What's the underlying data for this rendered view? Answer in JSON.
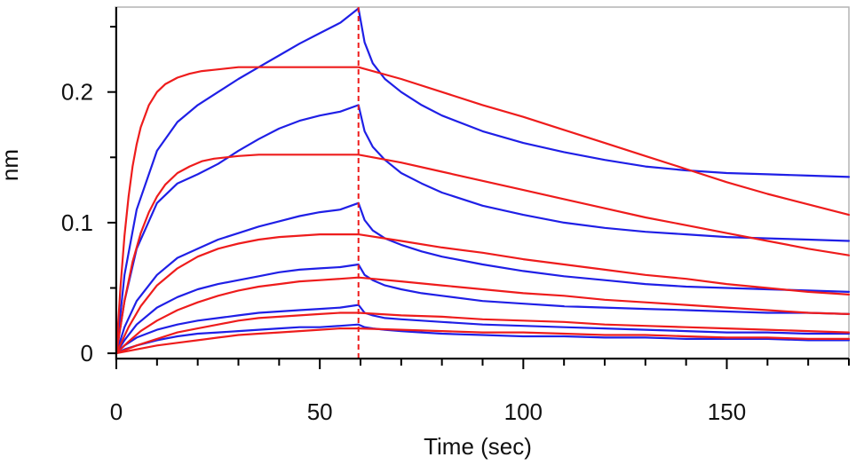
{
  "chart_data": {
    "type": "line",
    "title": "",
    "xlabel": "Time (sec)",
    "ylabel": "nm",
    "xlim": [
      0,
      180
    ],
    "ylim": [
      -0.004,
      0.265
    ],
    "x_ticks": [
      0,
      50,
      100,
      150
    ],
    "x_tick_labels": [
      "0",
      "50",
      "100",
      "150"
    ],
    "x_minor_step": 10,
    "y_ticks": [
      0,
      0.1,
      0.2
    ],
    "y_tick_labels": [
      "0",
      "0.1",
      "0.2"
    ],
    "y_minor_step": 0.05,
    "grid": false,
    "legend": "none",
    "marker_x": 59.5,
    "colors": {
      "measured": "#1f1fe6",
      "fit": "#ee1c1c",
      "marker": "#ee1c1c",
      "frame": "#b4b4b4",
      "axis": "#000000"
    },
    "series": [
      {
        "kind": "measured",
        "x": [
          0,
          2,
          5,
          10,
          15,
          20,
          25,
          30,
          35,
          40,
          45,
          50,
          55,
          59.5,
          61,
          63,
          66,
          70,
          75,
          80,
          90,
          100,
          110,
          120,
          130,
          140,
          150,
          160,
          170,
          180
        ],
        "y": [
          0,
          0.06,
          0.11,
          0.155,
          0.177,
          0.19,
          0.2,
          0.21,
          0.219,
          0.228,
          0.237,
          0.245,
          0.253,
          0.264,
          0.238,
          0.222,
          0.21,
          0.2,
          0.19,
          0.182,
          0.17,
          0.161,
          0.154,
          0.148,
          0.143,
          0.14,
          0.138,
          0.137,
          0.136,
          0.135
        ]
      },
      {
        "kind": "measured",
        "x": [
          0,
          2,
          5,
          10,
          15,
          20,
          25,
          30,
          35,
          40,
          45,
          50,
          55,
          59.5,
          61,
          63,
          66,
          70,
          75,
          80,
          90,
          100,
          110,
          120,
          130,
          140,
          150,
          160,
          170,
          180
        ],
        "y": [
          0,
          0.04,
          0.08,
          0.115,
          0.13,
          0.137,
          0.145,
          0.155,
          0.164,
          0.172,
          0.178,
          0.182,
          0.185,
          0.19,
          0.17,
          0.158,
          0.148,
          0.138,
          0.13,
          0.123,
          0.113,
          0.106,
          0.1,
          0.096,
          0.093,
          0.091,
          0.089,
          0.088,
          0.087,
          0.086
        ]
      },
      {
        "kind": "measured",
        "x": [
          0,
          2,
          5,
          10,
          15,
          20,
          25,
          30,
          35,
          40,
          45,
          50,
          55,
          59.5,
          61,
          63,
          66,
          70,
          75,
          80,
          90,
          100,
          110,
          120,
          130,
          140,
          150,
          160,
          170,
          180
        ],
        "y": [
          0,
          0.02,
          0.04,
          0.06,
          0.073,
          0.08,
          0.087,
          0.092,
          0.097,
          0.101,
          0.105,
          0.108,
          0.11,
          0.115,
          0.102,
          0.094,
          0.088,
          0.083,
          0.078,
          0.074,
          0.068,
          0.063,
          0.059,
          0.056,
          0.053,
          0.051,
          0.05,
          0.049,
          0.048,
          0.047
        ]
      },
      {
        "kind": "measured",
        "x": [
          0,
          2,
          5,
          10,
          15,
          20,
          25,
          30,
          35,
          40,
          45,
          50,
          55,
          59.5,
          61,
          63,
          66,
          70,
          75,
          80,
          90,
          100,
          110,
          120,
          130,
          140,
          150,
          160,
          170,
          180
        ],
        "y": [
          0,
          0.01,
          0.022,
          0.035,
          0.043,
          0.049,
          0.053,
          0.056,
          0.059,
          0.062,
          0.064,
          0.065,
          0.066,
          0.068,
          0.06,
          0.056,
          0.052,
          0.049,
          0.046,
          0.044,
          0.04,
          0.038,
          0.036,
          0.035,
          0.034,
          0.033,
          0.032,
          0.031,
          0.031,
          0.03
        ]
      },
      {
        "kind": "measured",
        "x": [
          0,
          2,
          5,
          10,
          15,
          20,
          25,
          30,
          35,
          40,
          45,
          50,
          55,
          59.5,
          61,
          63,
          66,
          70,
          75,
          80,
          90,
          100,
          110,
          120,
          130,
          140,
          150,
          160,
          170,
          180
        ],
        "y": [
          0,
          0.006,
          0.012,
          0.018,
          0.022,
          0.025,
          0.027,
          0.029,
          0.031,
          0.032,
          0.033,
          0.034,
          0.035,
          0.037,
          0.031,
          0.029,
          0.027,
          0.026,
          0.025,
          0.024,
          0.022,
          0.021,
          0.02,
          0.019,
          0.018,
          0.017,
          0.016,
          0.016,
          0.015,
          0.015
        ]
      },
      {
        "kind": "measured",
        "x": [
          0,
          2,
          5,
          10,
          15,
          20,
          25,
          30,
          35,
          40,
          45,
          50,
          55,
          59.5,
          61,
          63,
          66,
          70,
          75,
          80,
          90,
          100,
          110,
          120,
          130,
          140,
          150,
          160,
          170,
          180
        ],
        "y": [
          0,
          0.003,
          0.006,
          0.01,
          0.013,
          0.015,
          0.016,
          0.017,
          0.018,
          0.019,
          0.02,
          0.02,
          0.021,
          0.022,
          0.02,
          0.019,
          0.018,
          0.017,
          0.016,
          0.015,
          0.014,
          0.013,
          0.013,
          0.012,
          0.012,
          0.011,
          0.011,
          0.011,
          0.01,
          0.01
        ]
      },
      {
        "kind": "fit",
        "x": [
          0,
          1,
          2,
          3,
          4,
          5,
          6,
          8,
          10,
          12,
          15,
          18,
          21,
          24,
          27,
          30,
          35,
          40,
          45,
          50,
          55,
          59.5,
          70,
          80,
          90,
          100,
          110,
          120,
          130,
          140,
          150,
          160,
          170,
          180
        ],
        "y": [
          0,
          0.05,
          0.09,
          0.12,
          0.143,
          0.16,
          0.173,
          0.19,
          0.2,
          0.206,
          0.211,
          0.214,
          0.216,
          0.217,
          0.218,
          0.219,
          0.219,
          0.219,
          0.219,
          0.219,
          0.219,
          0.219,
          0.21,
          0.2,
          0.19,
          0.181,
          0.171,
          0.161,
          0.151,
          0.141,
          0.131,
          0.122,
          0.114,
          0.106
        ]
      },
      {
        "kind": "fit",
        "x": [
          0,
          2,
          4,
          6,
          8,
          10,
          12,
          15,
          18,
          21,
          24,
          27,
          30,
          35,
          40,
          45,
          50,
          55,
          59.5,
          70,
          80,
          90,
          100,
          110,
          120,
          130,
          140,
          150,
          160,
          170,
          180
        ],
        "y": [
          0,
          0.04,
          0.07,
          0.092,
          0.108,
          0.12,
          0.129,
          0.138,
          0.143,
          0.147,
          0.149,
          0.15,
          0.151,
          0.152,
          0.152,
          0.152,
          0.152,
          0.152,
          0.152,
          0.146,
          0.139,
          0.132,
          0.125,
          0.118,
          0.111,
          0.104,
          0.098,
          0.092,
          0.086,
          0.08,
          0.075
        ]
      },
      {
        "kind": "fit",
        "x": [
          0,
          3,
          6,
          10,
          15,
          20,
          25,
          30,
          35,
          40,
          45,
          50,
          55,
          59.5,
          70,
          80,
          90,
          100,
          110,
          120,
          130,
          140,
          150,
          160,
          170,
          180
        ],
        "y": [
          0,
          0.02,
          0.036,
          0.052,
          0.065,
          0.074,
          0.08,
          0.084,
          0.087,
          0.089,
          0.09,
          0.091,
          0.091,
          0.091,
          0.086,
          0.081,
          0.077,
          0.072,
          0.068,
          0.064,
          0.06,
          0.057,
          0.053,
          0.05,
          0.047,
          0.045
        ]
      },
      {
        "kind": "fit",
        "x": [
          0,
          3,
          6,
          10,
          15,
          20,
          25,
          30,
          35,
          40,
          45,
          50,
          55,
          59.5,
          70,
          80,
          90,
          100,
          110,
          120,
          130,
          140,
          150,
          160,
          170,
          180
        ],
        "y": [
          0,
          0.009,
          0.017,
          0.025,
          0.033,
          0.039,
          0.044,
          0.048,
          0.051,
          0.053,
          0.055,
          0.056,
          0.057,
          0.058,
          0.055,
          0.052,
          0.049,
          0.046,
          0.044,
          0.041,
          0.039,
          0.037,
          0.035,
          0.033,
          0.031,
          0.03
        ]
      },
      {
        "kind": "fit",
        "x": [
          0,
          5,
          10,
          15,
          20,
          25,
          30,
          35,
          40,
          45,
          50,
          55,
          59.5,
          70,
          80,
          90,
          100,
          110,
          120,
          130,
          140,
          150,
          160,
          170,
          180
        ],
        "y": [
          0,
          0.006,
          0.011,
          0.016,
          0.019,
          0.022,
          0.025,
          0.027,
          0.028,
          0.029,
          0.03,
          0.031,
          0.031,
          0.029,
          0.028,
          0.026,
          0.025,
          0.024,
          0.022,
          0.021,
          0.02,
          0.019,
          0.018,
          0.017,
          0.016
        ]
      },
      {
        "kind": "fit",
        "x": [
          0,
          5,
          10,
          15,
          20,
          25,
          30,
          35,
          40,
          45,
          50,
          55,
          59.5,
          70,
          80,
          90,
          100,
          110,
          120,
          130,
          140,
          150,
          160,
          170,
          180
        ],
        "y": [
          0,
          0.003,
          0.006,
          0.008,
          0.01,
          0.012,
          0.014,
          0.015,
          0.016,
          0.017,
          0.018,
          0.019,
          0.019,
          0.018,
          0.017,
          0.016,
          0.016,
          0.015,
          0.014,
          0.014,
          0.013,
          0.012,
          0.012,
          0.011,
          0.011
        ]
      }
    ]
  }
}
